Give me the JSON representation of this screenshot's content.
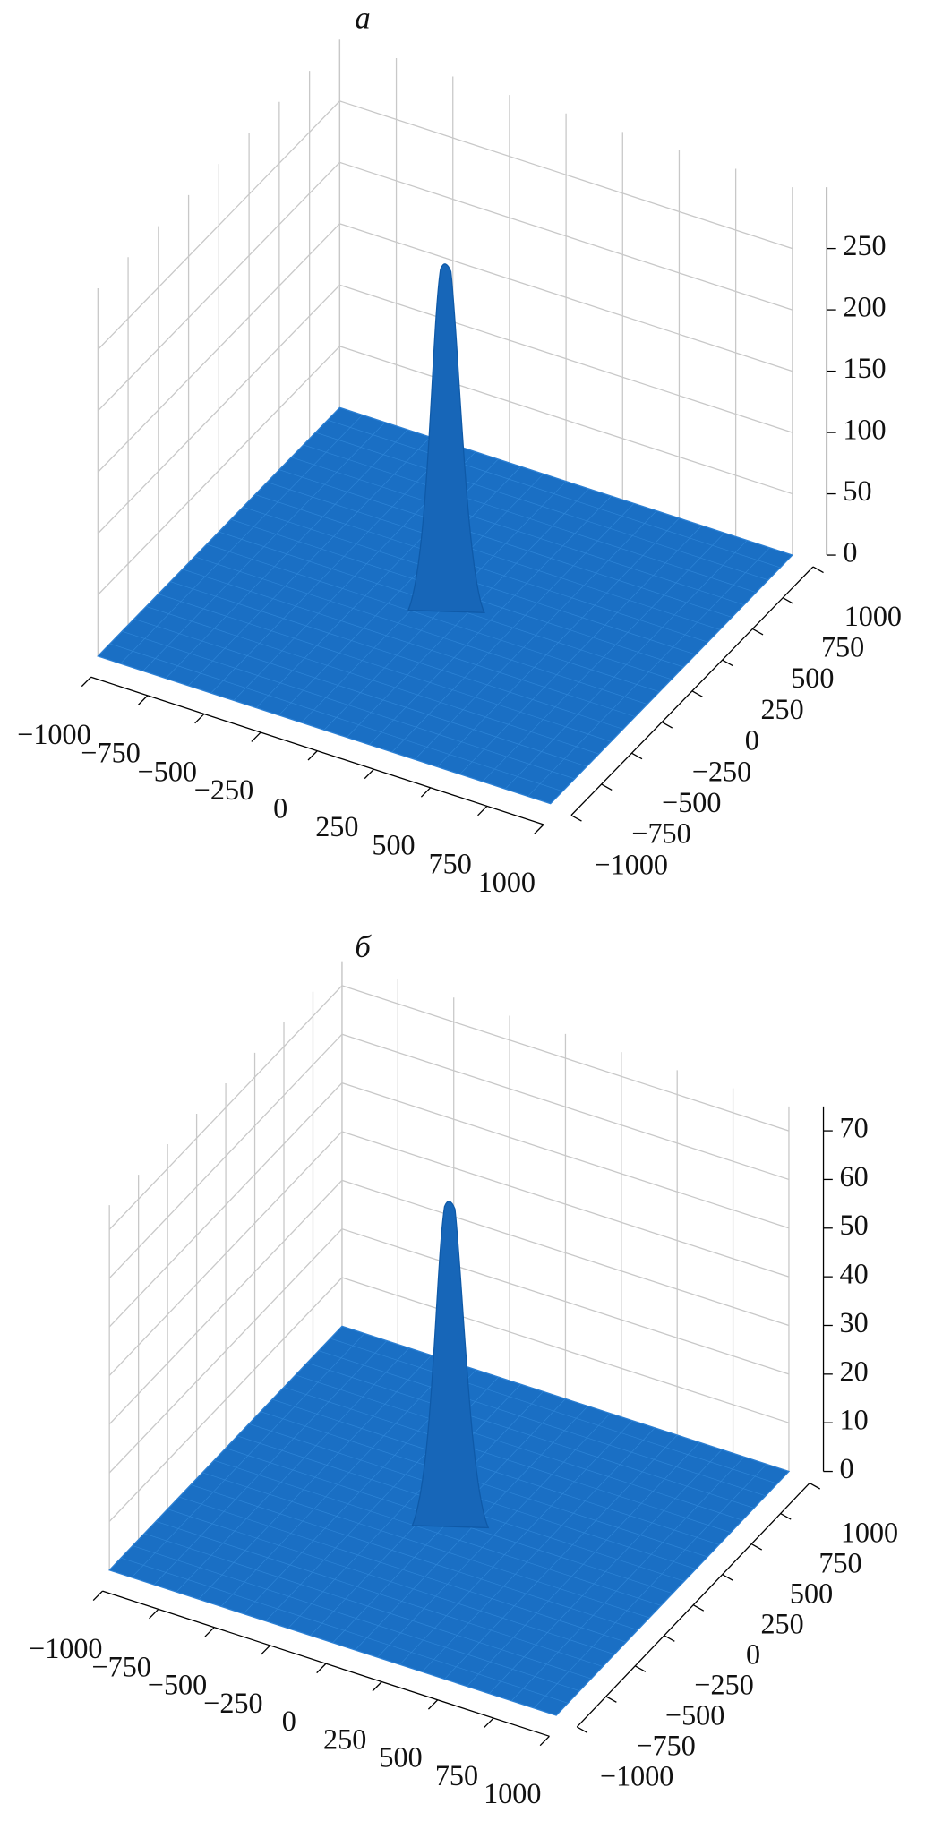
{
  "chart_data": [
    {
      "type": "surface",
      "title": "а",
      "color": "#1a6fc4",
      "x": [
        0
      ],
      "y": [
        0
      ],
      "z": [
        280
      ],
      "xlim": [
        -1000,
        1000
      ],
      "ylim": [
        -1000,
        1000
      ],
      "zlim": [
        0,
        300
      ],
      "xticks": [
        {
          "value": -1000,
          "label": "−1000"
        },
        {
          "value": -750,
          "label": "−750"
        },
        {
          "value": -500,
          "label": "−500"
        },
        {
          "value": -250,
          "label": "−250"
        },
        0,
        250,
        500,
        750,
        1000
      ],
      "yticks": [
        {
          "value": -1000,
          "label": "−1000"
        },
        {
          "value": -750,
          "label": "−750"
        },
        {
          "value": -500,
          "label": "−500"
        },
        {
          "value": -250,
          "label": "−250"
        },
        0,
        250,
        500,
        750,
        1000
      ],
      "zticks": [
        0,
        50,
        100,
        150,
        200,
        250
      ],
      "grid": true
    },
    {
      "type": "surface",
      "title": "б",
      "color": "#1a6fc4",
      "x": [
        0
      ],
      "y": [
        0
      ],
      "z": [
        66
      ],
      "xlim": [
        -1000,
        1000
      ],
      "ylim": [
        -1000,
        1000
      ],
      "zlim": [
        0,
        75
      ],
      "xticks": [
        {
          "value": -1000,
          "label": "−1000"
        },
        {
          "value": -750,
          "label": "−750"
        },
        {
          "value": -500,
          "label": "−500"
        },
        {
          "value": -250,
          "label": "−250"
        },
        0,
        250,
        500,
        750,
        1000
      ],
      "yticks": [
        {
          "value": -1000,
          "label": "−1000"
        },
        {
          "value": -750,
          "label": "−750"
        },
        {
          "value": -500,
          "label": "−500"
        },
        {
          "value": -250,
          "label": "−250"
        },
        0,
        250,
        500,
        750,
        1000
      ],
      "zticks": [
        0,
        10,
        20,
        30,
        40,
        50,
        60,
        70
      ],
      "grid": true
    }
  ]
}
